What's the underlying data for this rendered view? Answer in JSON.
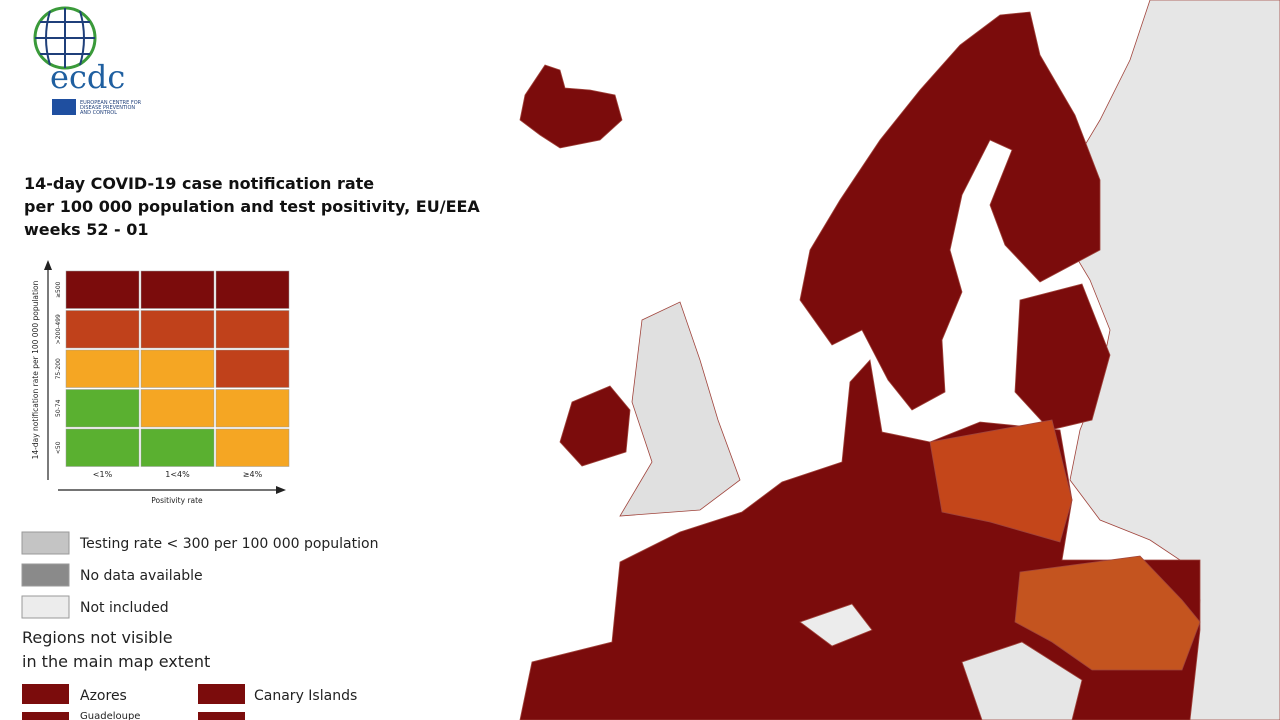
{
  "logo": {
    "name": "ecdc",
    "subtitle": [
      "EUROPEAN CENTRE FOR",
      "DISEASE PREVENTION",
      "AND CONTROL"
    ]
  },
  "title": [
    "14-day COVID-19 case notification rate",
    "per 100 000 population and test positivity, EU/EEA",
    "weeks 52 - 01"
  ],
  "matrix": {
    "y_label": "14-day notification rate per 100 000 population",
    "x_label": "Positivity rate",
    "rows": [
      "≥500",
      ">200-499",
      "75-200",
      "50-74",
      "<50"
    ],
    "columns": [
      "<1%",
      "1<4%",
      "≥4%"
    ],
    "colors": [
      [
        "#7b0c0c",
        "#7b0c0c",
        "#7b0c0c"
      ],
      [
        "#c0411b",
        "#c0411b",
        "#c0411b"
      ],
      [
        "#f5a623",
        "#f5a623",
        "#c0411b"
      ],
      [
        "#5ab030",
        "#f5a623",
        "#f5a623"
      ],
      [
        "#5ab030",
        "#5ab030",
        "#f5a623"
      ]
    ]
  },
  "legend": [
    {
      "label": "Testing rate < 300 per 100 000 population",
      "color": "#c4c4c4"
    },
    {
      "label": "No data available",
      "color": "#8a8a8a"
    },
    {
      "label": "Not included",
      "color": "#ececec"
    }
  ],
  "regions_title": [
    "Regions not visible",
    "in the main map extent"
  ],
  "regions": [
    {
      "label": "Azores",
      "color": "#7b0c0c"
    },
    {
      "label": "Canary Islands",
      "color": "#7b0c0c"
    },
    {
      "label": "Guadeloupe",
      "color": "#7b0c0c"
    }
  ]
}
